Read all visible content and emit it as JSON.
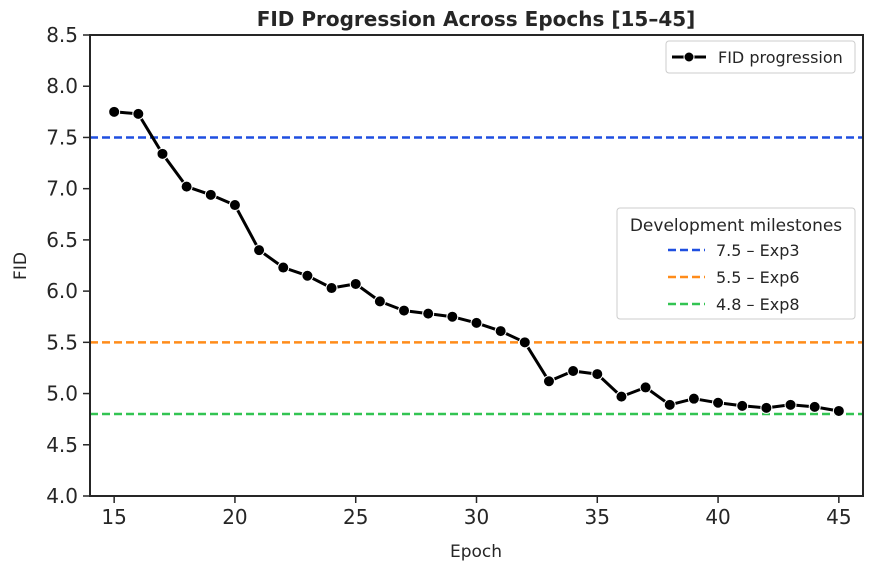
{
  "chart_data": {
    "type": "line",
    "title": "FID Progression Across Epochs [15–45]",
    "xlabel": "Epoch",
    "ylabel": "FID",
    "xlim": [
      14,
      46
    ],
    "ylim": [
      4.0,
      8.5
    ],
    "x_ticks": [
      15,
      20,
      25,
      30,
      35,
      40,
      45
    ],
    "y_ticks": [
      "4.0",
      "4.5",
      "5.0",
      "5.5",
      "6.0",
      "6.5",
      "7.0",
      "7.5",
      "8.0",
      "8.5"
    ],
    "grid": false,
    "series": [
      {
        "name": "FID progression",
        "color": "#000000",
        "x": [
          15,
          16,
          17,
          18,
          19,
          20,
          21,
          22,
          23,
          24,
          25,
          26,
          27,
          28,
          29,
          30,
          31,
          32,
          33,
          34,
          35,
          36,
          37,
          38,
          39,
          40,
          41,
          42,
          43,
          44,
          45
        ],
        "values": [
          7.75,
          7.73,
          7.34,
          7.02,
          6.94,
          6.84,
          6.4,
          6.23,
          6.15,
          6.03,
          6.07,
          5.9,
          5.81,
          5.78,
          5.75,
          5.69,
          5.61,
          5.5,
          5.12,
          5.22,
          5.19,
          4.97,
          5.06,
          4.89,
          4.95,
          4.91,
          4.88,
          4.86,
          4.89,
          4.87,
          4.83
        ]
      }
    ],
    "reference_lines": [
      {
        "value": 7.5,
        "label": "7.5 – Exp3",
        "color": "#1f4fe0",
        "style": "dashed"
      },
      {
        "value": 5.5,
        "label": "5.5 – Exp6",
        "color": "#ff8c1a",
        "style": "dashed"
      },
      {
        "value": 4.8,
        "label": "4.8 – Exp8",
        "color": "#33c452",
        "style": "dashed"
      }
    ],
    "legend": {
      "series_position": "top-right",
      "milestones_title": "Development milestones",
      "milestones_position": "center-right"
    }
  }
}
